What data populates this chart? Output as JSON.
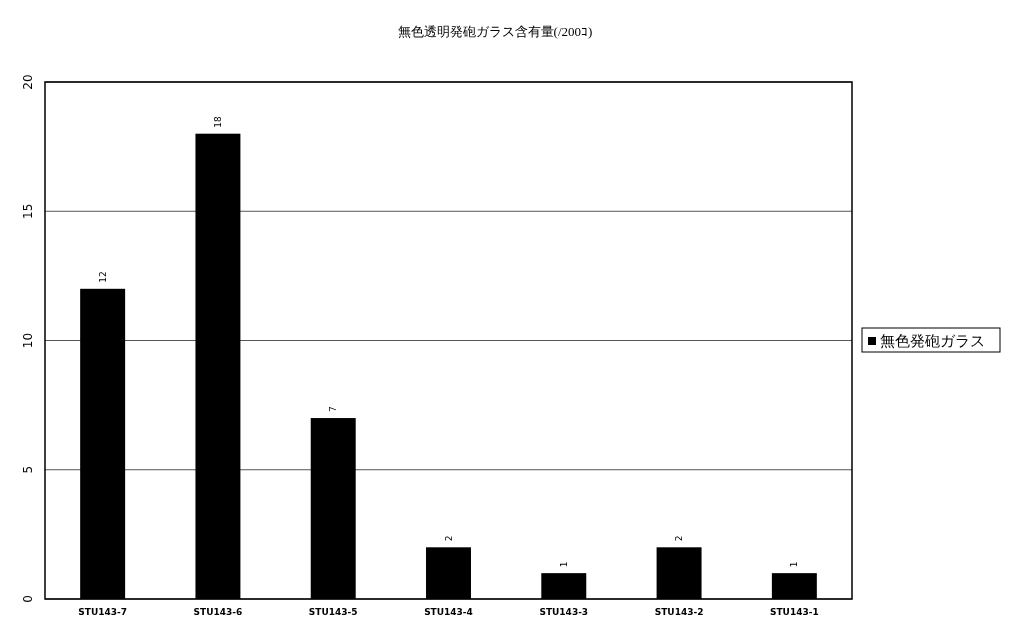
{
  "chart_data": {
    "type": "bar",
    "title": "無色透明発砲ガラス含有量(/200ｺ)",
    "categories": [
      "STU143-7",
      "STU143-6",
      "STU143-5",
      "STU143-4",
      "STU143-3",
      "STU143-2",
      "STU143-1"
    ],
    "series": [
      {
        "name": "無色発砲ガラス",
        "color": "#000000",
        "values": [
          12,
          18,
          7,
          2,
          1,
          2,
          1
        ]
      }
    ],
    "ylim": [
      0,
      20
    ],
    "yticks": [
      0,
      5,
      10,
      15,
      20
    ],
    "grid": "y",
    "legend": "right",
    "data_labels": true
  }
}
